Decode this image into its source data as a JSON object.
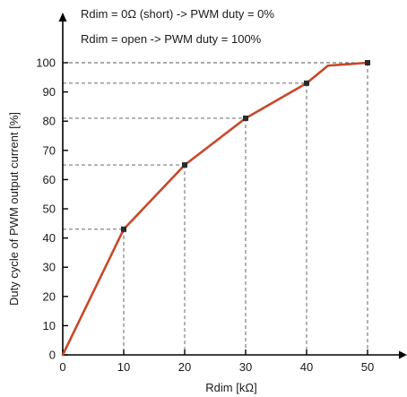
{
  "chart_data": {
    "type": "line",
    "title": "",
    "xlabel": "Rdim [kΩ]",
    "ylabel": "Duty cycle of PWM output current [%]",
    "xlim": [
      0,
      50
    ],
    "ylim": [
      0,
      100
    ],
    "x_ticks": [
      "0",
      "10",
      "20",
      "30",
      "40",
      "50"
    ],
    "y_ticks": [
      "0",
      "10",
      "20",
      "30",
      "40",
      "50",
      "60",
      "70",
      "80",
      "90",
      "100"
    ],
    "annotations": [
      "Rdim = 0Ω (short) -> PWM duty = 0%",
      "Rdim = open -> PWM duty = 100%"
    ],
    "grid": false,
    "series": [
      {
        "color": "#c8472a",
        "x": [
          0,
          10,
          20,
          30,
          40,
          43.5,
          50
        ],
        "y": [
          0,
          43,
          65,
          81,
          93,
          99,
          100
        ]
      }
    ],
    "markers": [
      {
        "x": 10,
        "y": 43
      },
      {
        "x": 20,
        "y": 65
      },
      {
        "x": 30,
        "y": 81
      },
      {
        "x": 40,
        "y": 93
      },
      {
        "x": 50,
        "y": 100
      }
    ],
    "guide_style": "dashed",
    "marker_color": "#2a2a2a"
  }
}
